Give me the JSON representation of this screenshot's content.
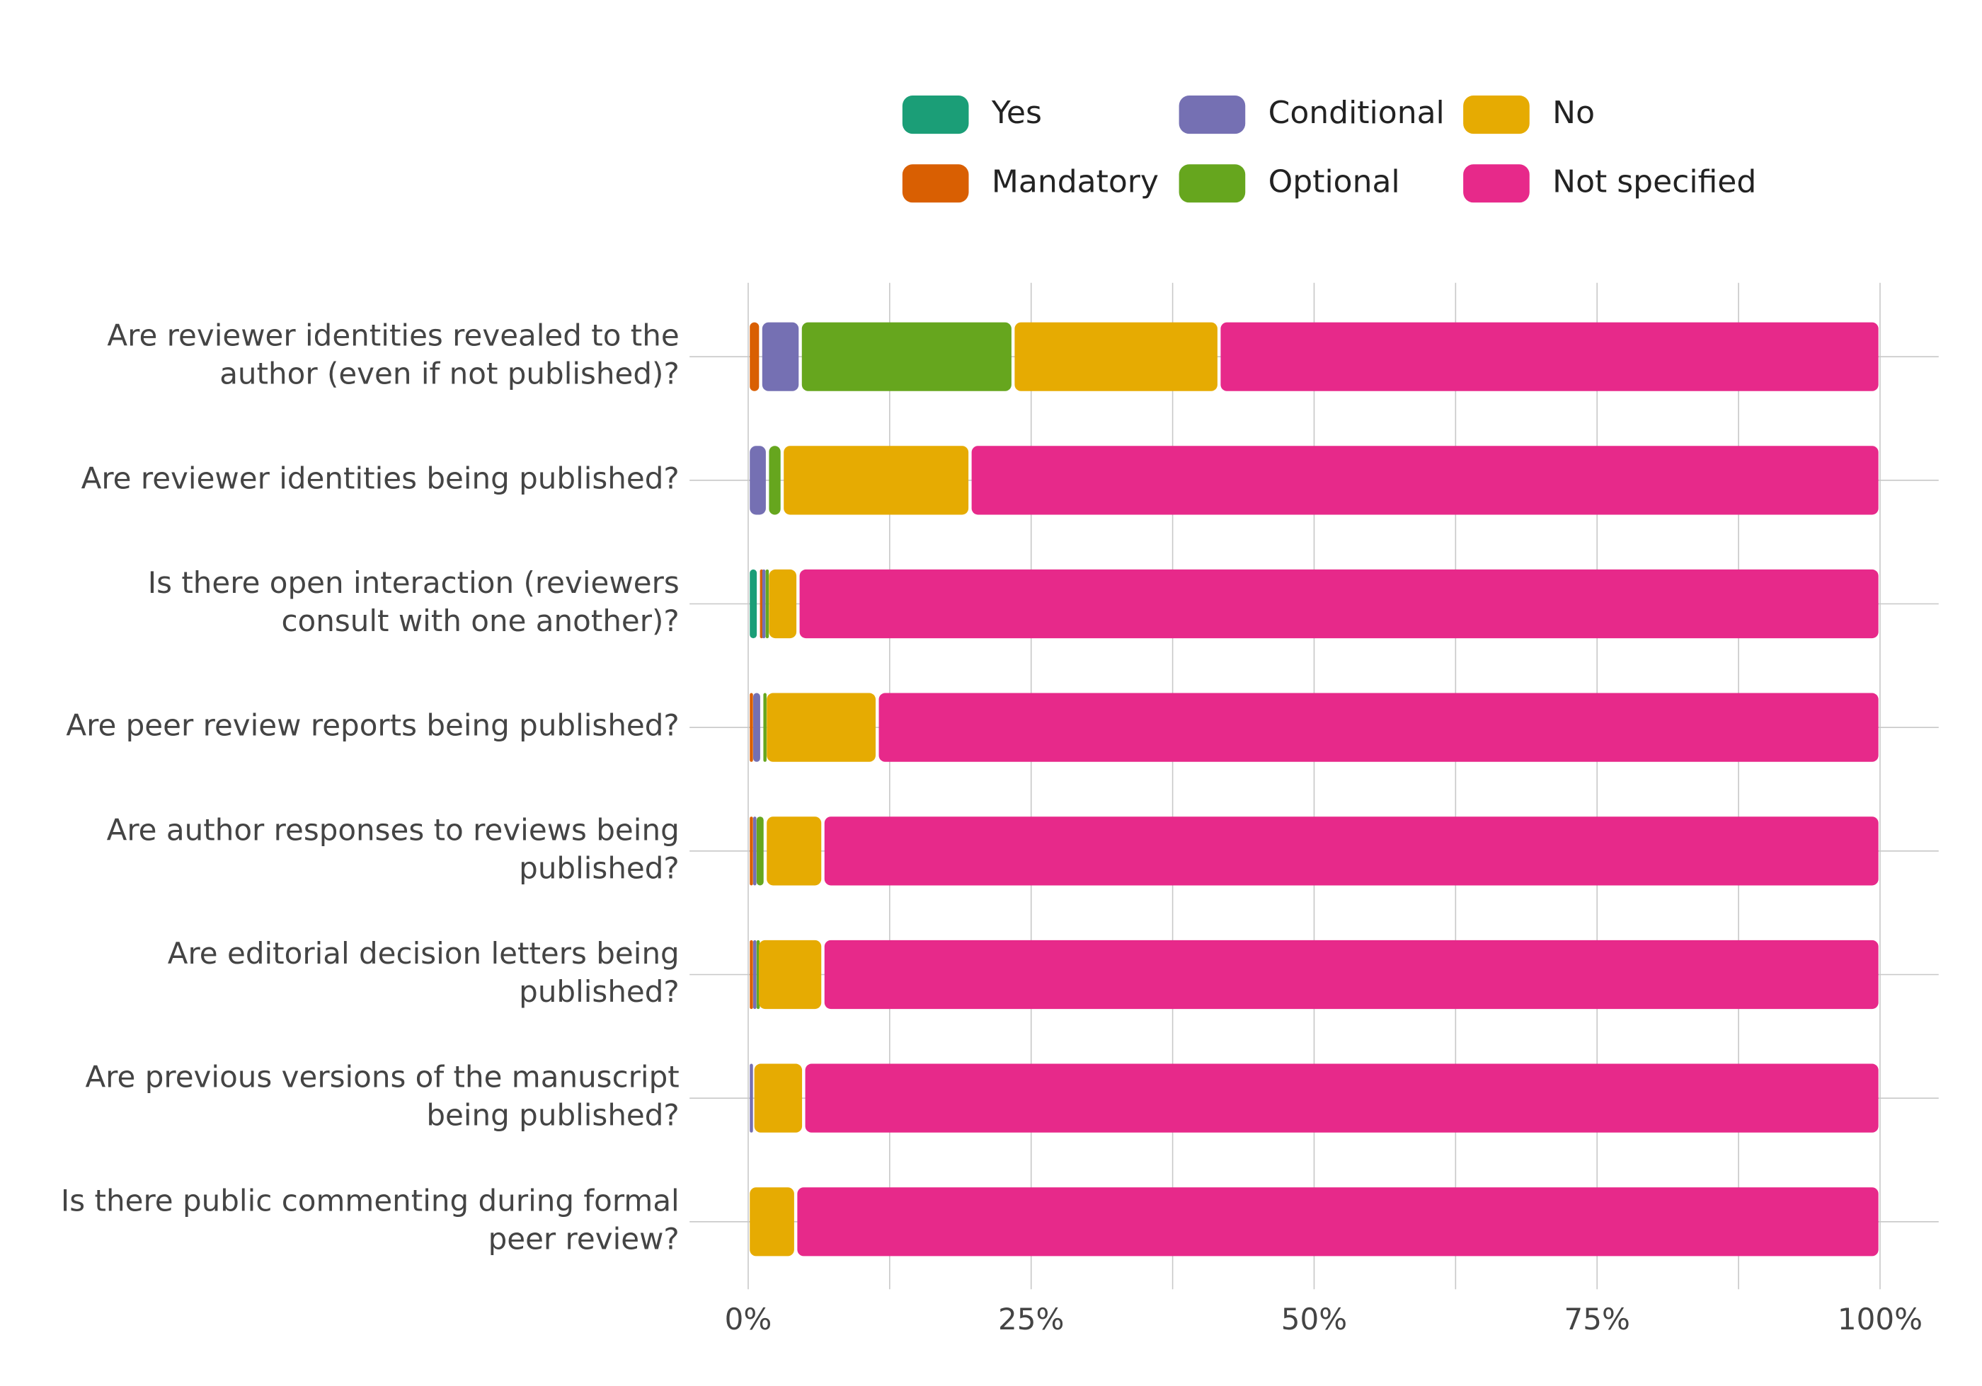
{
  "chart_data": {
    "type": "bar",
    "orientation": "horizontal",
    "stacked": true,
    "xlim": [
      0,
      100
    ],
    "x_ticks": [
      "0%",
      "25%",
      "50%",
      "75%",
      "100%"
    ],
    "x_tick_values": [
      0,
      25,
      50,
      75,
      100
    ],
    "grid": true,
    "legend_position": "top",
    "categories": [
      [
        "Are reviewer identities revealed to the",
        "author (even if not published)?"
      ],
      [
        "Are reviewer identities being published?"
      ],
      [
        "Is there open interaction (reviewers",
        "consult with one another)?"
      ],
      [
        "Are peer review reports being published?"
      ],
      [
        "Are author responses to reviews being",
        "published?"
      ],
      [
        "Are editorial decision letters being",
        "published?"
      ],
      [
        "Are previous versions of the manuscript",
        "being published?"
      ],
      [
        "Is there public commenting during formal",
        "peer review?"
      ]
    ],
    "series": [
      {
        "name": "Yes",
        "color": "#1b9e77",
        "values": [
          0.0,
          0.0,
          0.9,
          0.0,
          0.0,
          0.0,
          0.0,
          0.0
        ]
      },
      {
        "name": "Mandatory",
        "color": "#d95f02",
        "values": [
          1.1,
          0.0,
          0.2,
          0.3,
          0.3,
          0.3,
          0.0,
          0.0
        ]
      },
      {
        "name": "Conditional",
        "color": "#7570b3",
        "values": [
          3.5,
          1.7,
          0.3,
          0.9,
          0.3,
          0.3,
          0.4,
          0.0
        ]
      },
      {
        "name": "Optional",
        "color": "#66a61e",
        "values": [
          18.8,
          1.3,
          0.3,
          0.3,
          0.9,
          0.2,
          0.0,
          0.0
        ]
      },
      {
        "name": "No",
        "color": "#e6ab02",
        "values": [
          18.2,
          16.6,
          2.7,
          9.9,
          5.1,
          5.8,
          4.5,
          4.2
        ]
      },
      {
        "name": "Not specified",
        "color": "#e7298a",
        "values": [
          58.4,
          80.4,
          95.6,
          88.6,
          93.4,
          93.4,
          95.1,
          95.8
        ]
      }
    ]
  }
}
